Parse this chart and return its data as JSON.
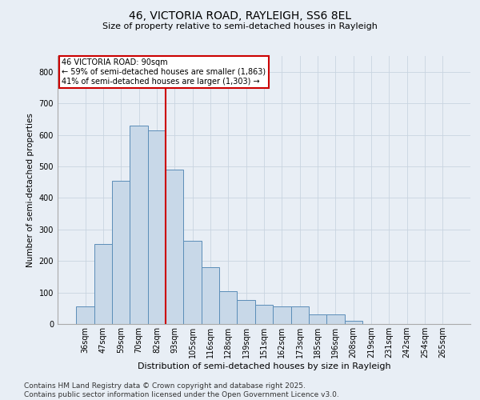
{
  "title1": "46, VICTORIA ROAD, RAYLEIGH, SS6 8EL",
  "title2": "Size of property relative to semi-detached houses in Rayleigh",
  "xlabel": "Distribution of semi-detached houses by size in Rayleigh",
  "ylabel": "Number of semi-detached properties",
  "categories": [
    "36sqm",
    "47sqm",
    "59sqm",
    "70sqm",
    "82sqm",
    "93sqm",
    "105sqm",
    "116sqm",
    "128sqm",
    "139sqm",
    "151sqm",
    "162sqm",
    "173sqm",
    "185sqm",
    "196sqm",
    "208sqm",
    "219sqm",
    "231sqm",
    "242sqm",
    "254sqm",
    "265sqm"
  ],
  "values": [
    55,
    255,
    455,
    630,
    615,
    490,
    265,
    180,
    105,
    75,
    60,
    55,
    55,
    30,
    30,
    10,
    0,
    0,
    0,
    0,
    0
  ],
  "bar_color": "#c8d8e8",
  "bar_edge_color": "#5b8db8",
  "property_line_x": 4.5,
  "property_sqm": 90,
  "property_label": "46 VICTORIA ROAD: 90sqm",
  "pct_smaller": 59,
  "count_smaller": 1863,
  "pct_larger": 41,
  "count_larger": 1303,
  "annotation_box_color": "#ffffff",
  "annotation_box_edge": "#cc0000",
  "line_color": "#cc0000",
  "grid_color": "#c8d4e0",
  "background_color": "#e8eef5",
  "ylim": [
    0,
    850
  ],
  "yticks": [
    0,
    100,
    200,
    300,
    400,
    500,
    600,
    700,
    800
  ],
  "footer1": "Contains HM Land Registry data © Crown copyright and database right 2025.",
  "footer2": "Contains public sector information licensed under the Open Government Licence v3.0.",
  "title1_fontsize": 10,
  "title2_fontsize": 8,
  "tick_fontsize": 7,
  "xlabel_fontsize": 8,
  "ylabel_fontsize": 7.5,
  "footer_fontsize": 6.5,
  "ann_fontsize": 7
}
